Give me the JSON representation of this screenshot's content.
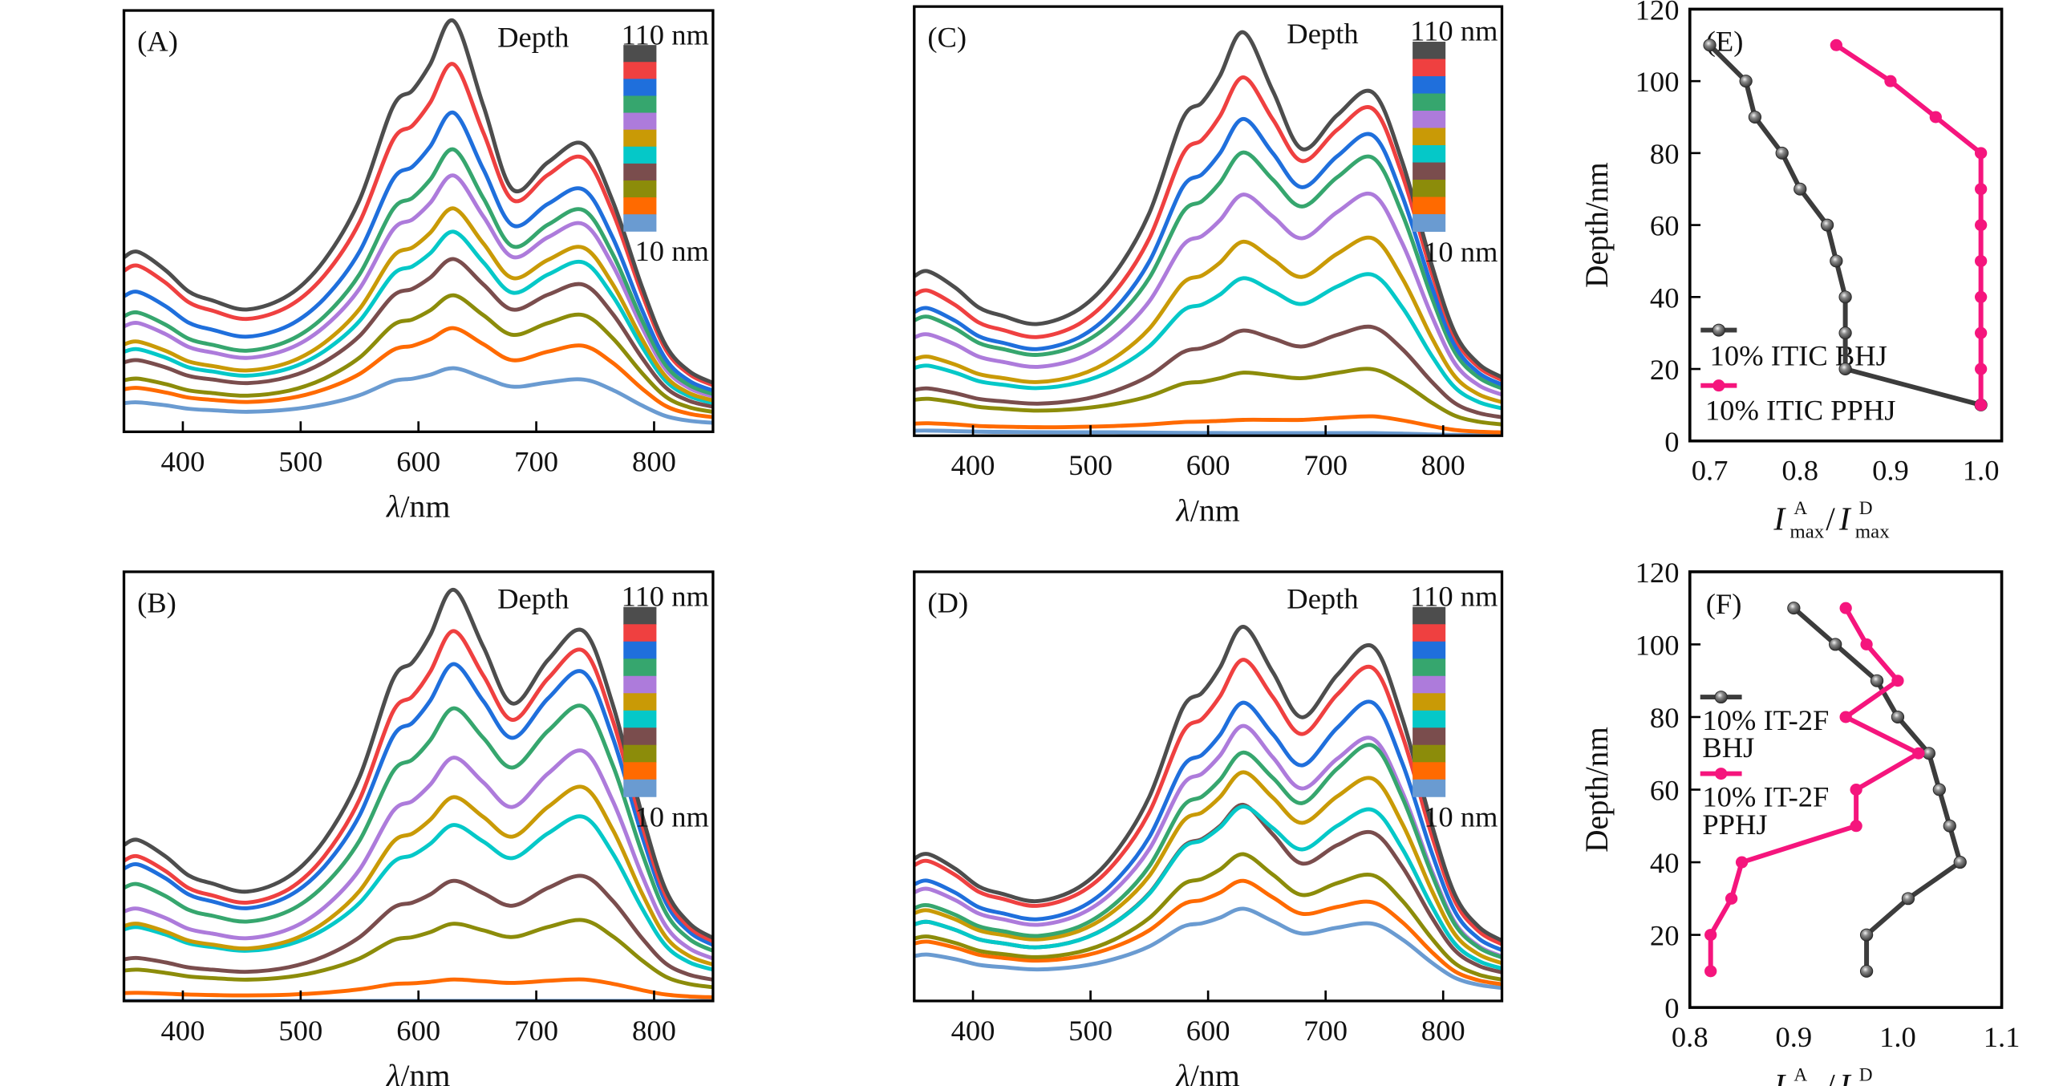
{
  "chart_data": [
    {
      "type": "line",
      "panel": "(A)",
      "xlabel_symbol": "λ",
      "xlabel_unit": "/nm",
      "xlim": [
        350,
        850
      ],
      "ylim": [
        0,
        1
      ],
      "y_units": "relative absorbance (no tick labels shown)",
      "xticks": [
        400,
        500,
        600,
        700,
        800
      ],
      "legend": {
        "title": "Depth",
        "top_label": "110 nm",
        "bottom_label": "10 nm"
      },
      "series_keys": "a360/a630/a680/a740 = relative intensity at 360, 630, 680, 740 nm",
      "series": [
        {
          "depth": "110 nm",
          "color": "#4d4d4d",
          "a360": 0.427,
          "a630": 0.975,
          "a680": 0.575,
          "a740": 0.683
        },
        {
          "depth": "100 nm",
          "color": "#ef4040",
          "a360": 0.394,
          "a630": 0.872,
          "a680": 0.55,
          "a740": 0.65
        },
        {
          "depth": "90 nm",
          "color": "#1f6fdc",
          "a360": 0.332,
          "a630": 0.757,
          "a680": 0.49,
          "a740": 0.575
        },
        {
          "depth": "80 nm",
          "color": "#36a66e",
          "a360": 0.283,
          "a630": 0.67,
          "a680": 0.44,
          "a740": 0.526
        },
        {
          "depth": "70 nm",
          "color": "#ad7bdb",
          "a360": 0.258,
          "a630": 0.608,
          "a680": 0.415,
          "a740": 0.493
        },
        {
          "depth": "60 nm",
          "color": "#c99a06",
          "a360": 0.214,
          "a630": 0.53,
          "a680": 0.365,
          "a740": 0.437
        },
        {
          "depth": "50 nm",
          "color": "#05c8c8",
          "a360": 0.196,
          "a630": 0.475,
          "a680": 0.33,
          "a740": 0.402
        },
        {
          "depth": "40 nm",
          "color": "#7a4d4d",
          "a360": 0.17,
          "a630": 0.41,
          "a680": 0.29,
          "a740": 0.349
        },
        {
          "depth": "30 nm",
          "color": "#8c8c0a",
          "a360": 0.126,
          "a630": 0.324,
          "a680": 0.23,
          "a740": 0.277
        },
        {
          "depth": "20 nm",
          "color": "#ff6a00",
          "a360": 0.104,
          "a630": 0.246,
          "a680": 0.17,
          "a740": 0.204
        },
        {
          "depth": "10 nm",
          "color": "#6a9bd1",
          "a360": 0.07,
          "a630": 0.151,
          "a680": 0.107,
          "a740": 0.124
        }
      ]
    },
    {
      "type": "line",
      "panel": "(B)",
      "xlabel_symbol": "λ",
      "xlabel_unit": "/nm",
      "xlim": [
        350,
        850
      ],
      "ylim": [
        0,
        1
      ],
      "y_units": "relative absorbance (no tick labels shown)",
      "xticks": [
        400,
        500,
        600,
        700,
        800
      ],
      "legend": {
        "title": "Depth",
        "top_label": "110 nm",
        "bottom_label": "10 nm"
      },
      "series": [
        {
          "depth": "110 nm",
          "color": "#4d4d4d",
          "a360": 0.375,
          "a630": 0.958,
          "a680": 0.693,
          "a740": 0.862
        },
        {
          "depth": "100 nm",
          "color": "#ef4040",
          "a360": 0.337,
          "a630": 0.862,
          "a680": 0.655,
          "a740": 0.816
        },
        {
          "depth": "90 nm",
          "color": "#1f6fdc",
          "a360": 0.318,
          "a630": 0.785,
          "a680": 0.613,
          "a740": 0.766
        },
        {
          "depth": "80 nm",
          "color": "#36a66e",
          "a360": 0.272,
          "a630": 0.682,
          "a680": 0.544,
          "a740": 0.686
        },
        {
          "depth": "70 nm",
          "color": "#ad7bdb",
          "a360": 0.215,
          "a630": 0.567,
          "a680": 0.452,
          "a740": 0.582
        },
        {
          "depth": "60 nm",
          "color": "#c99a06",
          "a360": 0.18,
          "a630": 0.475,
          "a680": 0.383,
          "a740": 0.498
        },
        {
          "depth": "50 nm",
          "color": "#05c8c8",
          "a360": 0.172,
          "a630": 0.41,
          "a680": 0.333,
          "a740": 0.429
        },
        {
          "depth": "40 nm",
          "color": "#7a4d4d",
          "a360": 0.1,
          "a630": 0.28,
          "a680": 0.222,
          "a740": 0.291
        },
        {
          "depth": "30 nm",
          "color": "#8c8c0a",
          "a360": 0.073,
          "a630": 0.18,
          "a680": 0.149,
          "a740": 0.188
        },
        {
          "depth": "20 nm",
          "color": "#ff6a00",
          "a360": 0.019,
          "a630": 0.05,
          "a680": 0.042,
          "a740": 0.05
        },
        {
          "depth": "10 nm",
          "color": "#6a9bd1",
          "a360": 0.0,
          "a630": 0.0,
          "a680": 0.0,
          "a740": 0.0
        }
      ]
    },
    {
      "type": "line",
      "panel": "(C)",
      "xlabel_symbol": "λ",
      "xlabel_unit": "/nm",
      "xlim": [
        350,
        850
      ],
      "ylim": [
        0,
        1
      ],
      "y_units": "relative absorbance (no tick labels shown)",
      "xticks": [
        400,
        500,
        600,
        700,
        800
      ],
      "legend": {
        "title": "Depth",
        "top_label": "110 nm",
        "bottom_label": "10 nm"
      },
      "series": [
        {
          "depth": "110 nm",
          "color": "#4d4d4d",
          "a360": 0.383,
          "a630": 0.94,
          "a680": 0.668,
          "a740": 0.8
        },
        {
          "depth": "100 nm",
          "color": "#ef4040",
          "a360": 0.338,
          "a630": 0.835,
          "a680": 0.64,
          "a740": 0.762
        },
        {
          "depth": "90 nm",
          "color": "#1f6fdc",
          "a360": 0.297,
          "a630": 0.738,
          "a680": 0.579,
          "a740": 0.7
        },
        {
          "depth": "80 nm",
          "color": "#36a66e",
          "a360": 0.277,
          "a630": 0.66,
          "a680": 0.534,
          "a740": 0.648
        },
        {
          "depth": "70 nm",
          "color": "#ad7bdb",
          "a360": 0.236,
          "a630": 0.562,
          "a680": 0.46,
          "a740": 0.562
        },
        {
          "depth": "60 nm",
          "color": "#c99a06",
          "a360": 0.184,
          "a630": 0.452,
          "a680": 0.37,
          "a740": 0.46
        },
        {
          "depth": "50 nm",
          "color": "#05c8c8",
          "a360": 0.163,
          "a630": 0.367,
          "a680": 0.307,
          "a740": 0.375
        },
        {
          "depth": "40 nm",
          "color": "#7a4d4d",
          "a360": 0.11,
          "a630": 0.245,
          "a680": 0.208,
          "a740": 0.253
        },
        {
          "depth": "30 nm",
          "color": "#8c8c0a",
          "a360": 0.086,
          "a630": 0.147,
          "a680": 0.134,
          "a740": 0.155
        },
        {
          "depth": "20 nm",
          "color": "#ff6a00",
          "a360": 0.029,
          "a630": 0.037,
          "a680": 0.037,
          "a740": 0.045
        },
        {
          "depth": "10 nm",
          "color": "#6a9bd1",
          "a360": 0.012,
          "a630": 0.006,
          "a680": 0.006,
          "a740": 0.006
        }
      ]
    },
    {
      "type": "line",
      "panel": "(D)",
      "xlabel_symbol": "λ",
      "xlabel_unit": "/nm",
      "xlim": [
        350,
        850
      ],
      "ylim": [
        0,
        1
      ],
      "y_units": "relative absorbance (no tick labels shown)",
      "xticks": [
        400,
        500,
        600,
        700,
        800
      ],
      "legend": {
        "title": "Depth",
        "top_label": "110 nm",
        "bottom_label": "10 nm"
      },
      "series": [
        {
          "depth": "110 nm",
          "color": "#4d4d4d",
          "a360": 0.342,
          "a630": 0.872,
          "a680": 0.661,
          "a740": 0.826
        },
        {
          "depth": "100 nm",
          "color": "#ef4040",
          "a360": 0.326,
          "a630": 0.795,
          "a680": 0.622,
          "a740": 0.776
        },
        {
          "depth": "90 nm",
          "color": "#1f6fdc",
          "a360": 0.28,
          "a630": 0.695,
          "a680": 0.549,
          "a740": 0.695
        },
        {
          "depth": "80 nm",
          "color": "#36a66e",
          "a360": 0.223,
          "a630": 0.579,
          "a680": 0.461,
          "a740": 0.595
        },
        {
          "depth": "70 nm",
          "color": "#ad7bdb",
          "a360": 0.261,
          "a630": 0.641,
          "a680": 0.495,
          "a740": 0.611
        },
        {
          "depth": "60 nm",
          "color": "#c99a06",
          "a360": 0.211,
          "a630": 0.533,
          "a680": 0.415,
          "a740": 0.518
        },
        {
          "depth": "50 nm",
          "color": "#05c8c8",
          "a360": 0.184,
          "a630": 0.453,
          "a680": 0.353,
          "a740": 0.445
        },
        {
          "depth": "40 nm",
          "color": "#7a4d4d",
          "a360": 0.184,
          "a630": 0.457,
          "a680": 0.32,
          "a740": 0.392
        },
        {
          "depth": "30 nm",
          "color": "#8c8c0a",
          "a360": 0.15,
          "a630": 0.342,
          "a680": 0.247,
          "a740": 0.293
        },
        {
          "depth": "20 nm",
          "color": "#ff6a00",
          "a360": 0.138,
          "a630": 0.28,
          "a680": 0.203,
          "a740": 0.23
        },
        {
          "depth": "10 nm",
          "color": "#6a9bd1",
          "a360": 0.108,
          "a630": 0.215,
          "a680": 0.157,
          "a740": 0.18
        }
      ]
    },
    {
      "type": "line",
      "panel": "(E)",
      "xlabel": {
        "symbol": "I",
        "sup_acceptor": "A",
        "sub": "max",
        "slash": "/",
        "sup_donor": "D"
      },
      "ylabel": "Depth/nm",
      "xlim": [
        0.678,
        1.023
      ],
      "ylim": [
        0,
        120
      ],
      "xticks": [
        "0.7",
        "0.8",
        "0.9",
        "1.0"
      ],
      "yticks": [
        "0",
        "20",
        "40",
        "60",
        "80",
        "100",
        "120"
      ],
      "legend_position": "bottom-left",
      "series": [
        {
          "name": "10% ITIC BHJ",
          "color": "#3c3c3c",
          "marker": "sphere",
          "depth": [
            110,
            100,
            90,
            80,
            70,
            60,
            50,
            40,
            30,
            20,
            10
          ],
          "ratio": [
            0.7,
            0.74,
            0.75,
            0.78,
            0.8,
            0.83,
            0.84,
            0.85,
            0.85,
            0.85,
            1.0
          ]
        },
        {
          "name": "10% ITIC PPHJ",
          "color": "#f5157d",
          "marker": "dot",
          "depth": [
            110,
            100,
            90,
            80,
            70,
            60,
            50,
            40,
            30,
            20,
            10
          ],
          "ratio": [
            0.84,
            0.9,
            0.95,
            1.0,
            1.0,
            1.0,
            1.0,
            1.0,
            1.0,
            1.0,
            1.0
          ]
        }
      ]
    },
    {
      "type": "line",
      "panel": "(F)",
      "xlabel": {
        "symbol": "I",
        "sup_acceptor": "A",
        "sub": "max",
        "slash": "/",
        "sup_donor": "D"
      },
      "ylabel": "Depth/nm",
      "xlim": [
        0.8,
        1.1
      ],
      "ylim": [
        0,
        120
      ],
      "xticks": [
        "0.8",
        "0.9",
        "1.0",
        "1.1"
      ],
      "yticks": [
        "0",
        "20",
        "40",
        "60",
        "80",
        "100",
        "120"
      ],
      "legend_position": "middle-left",
      "series": [
        {
          "name_line1": "10% IT-2F",
          "name_line2": "BHJ",
          "color": "#3c3c3c",
          "marker": "sphere",
          "depth": [
            110,
            100,
            90,
            80,
            70,
            60,
            50,
            40,
            30,
            20,
            10
          ],
          "ratio": [
            0.9,
            0.94,
            0.98,
            1.0,
            1.03,
            1.04,
            1.05,
            1.06,
            1.01,
            0.97,
            0.97
          ]
        },
        {
          "name_line1": "10% IT-2F",
          "name_line2": "PPHJ",
          "color": "#f5157d",
          "marker": "dot",
          "depth": [
            110,
            100,
            90,
            80,
            70,
            60,
            50,
            40,
            30,
            20,
            10
          ],
          "ratio": [
            0.95,
            0.97,
            1.0,
            0.95,
            1.02,
            0.96,
            0.96,
            0.85,
            0.84,
            0.82,
            0.82
          ]
        }
      ]
    }
  ]
}
